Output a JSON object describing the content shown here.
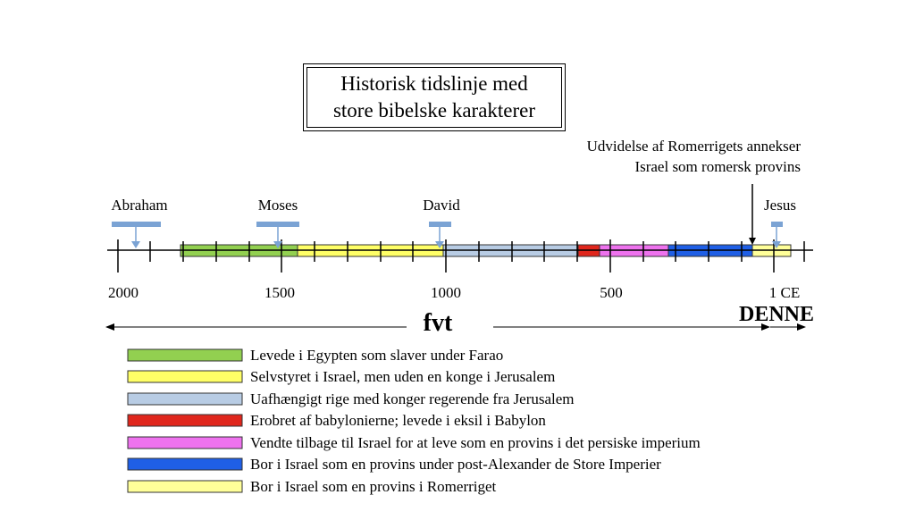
{
  "title": {
    "line1": "Historisk tidslinje med",
    "line2": "store bibelske karakterer"
  },
  "annotation": {
    "line1": "Udvidelse af Romerrigets annekser",
    "line2": "Israel som romersk provins"
  },
  "people": [
    {
      "name": "Abraham"
    },
    {
      "name": "Moses"
    },
    {
      "name": "David"
    },
    {
      "name": "Jesus"
    }
  ],
  "axis": {
    "tick_labels": [
      "2000",
      "1500",
      "1000",
      "500",
      "1 CE"
    ],
    "era_left": "fvt",
    "era_right": "DENNE"
  },
  "periods": [
    {
      "color": "#92d050"
    },
    {
      "color": "#ffff66"
    },
    {
      "color": "#b8cce4"
    },
    {
      "color": "#e0261c"
    },
    {
      "color": "#ee72ee"
    },
    {
      "color": "#1f5fe6"
    },
    {
      "color": "#ffff99"
    }
  ],
  "legend": [
    {
      "label": "Levede i Egypten som slaver under Farao",
      "color": "#92d050"
    },
    {
      "label": "Selvstyret i Israel, men uden en konge i Jerusalem",
      "color": "#ffff66"
    },
    {
      "label": "Uafhængigt rige med konger regerende fra Jerusalem",
      "color": "#b8cce4"
    },
    {
      "label": "Erobret af babylonierne; levede i eksil i Babylon",
      "color": "#e0261c"
    },
    {
      "label": "Vendte tilbage til Israel for at leve som en provins i det persiske imperium",
      "color": "#ee72ee"
    },
    {
      "label": "Bor i Israel som en provins under post-Alexander de Store Imperier",
      "color": "#1f5fe6"
    },
    {
      "label": "Bor i Israel som en provins i Romerriget",
      "color": "#ffff99"
    }
  ],
  "marker_color": "#7ba3d4"
}
